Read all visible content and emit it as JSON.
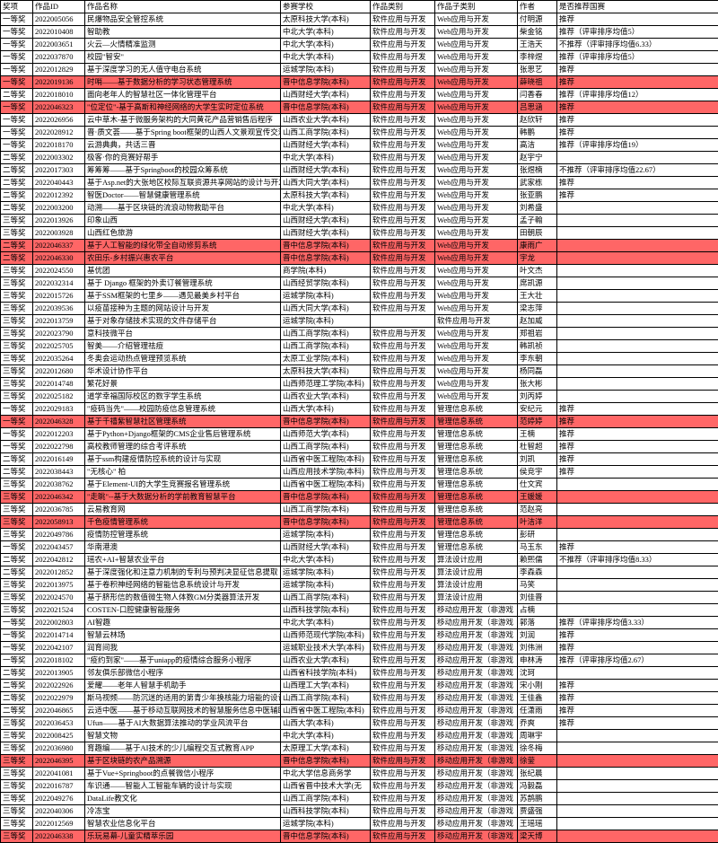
{
  "columns": [
    "奖项",
    "作品ID",
    "作品名称",
    "参赛学校",
    "作品类别",
    "作品子类别",
    "作者",
    "是否推荐国赛"
  ],
  "rows": [
    {
      "c": [
        "一等奖",
        "2022005056",
        "民爆物品安全管控系统",
        "太原科技大学(本科)",
        "软件应用与开发",
        "Web应用与开发",
        "付明源",
        "推荐"
      ],
      "hl": false
    },
    {
      "c": [
        "一等奖",
        "2022010408",
        "智助教",
        "中北大学(本科)",
        "软件应用与开发",
        "Web应用与开发",
        "柴金铭",
        "推荐（评审排序均值5）"
      ],
      "hl": false
    },
    {
      "c": [
        "一等奖",
        "2022003651",
        "火云—火情精准监测",
        "中北大学(本科)",
        "软件应用与开发",
        "Web应用与开发",
        "王浩天",
        "不推荐（评审排序均值6.33）"
      ],
      "hl": false
    },
    {
      "c": [
        "一等奖",
        "2022037870",
        "校园\"智安\"",
        "中北大学(本科)",
        "软件应用与开发",
        "Web应用与开发",
        "李梓煜",
        "推荐（评审排序均值5）"
      ],
      "hl": false
    },
    {
      "c": [
        "一等奖",
        "2022012829",
        "基于深度学习的无人值守电台系统",
        "运城学院(本科)",
        "软件应用与开发",
        "Web应用与开发",
        "张思艺",
        "推荐"
      ],
      "hl": false
    },
    {
      "c": [
        "一等奖",
        "2022019136",
        "时哨——基于数据分析的学习状态管理系统",
        "晋中信息学院(本科)",
        "软件应用与开发",
        "Web应用与开发",
        "薛晓祖",
        "推荐"
      ],
      "hl": true
    },
    {
      "c": [
        "二等奖",
        "2022018010",
        "面向老年人的智慧社区一体化管理平台",
        "山西财经大学(本科)",
        "软件应用与开发",
        "Web应用与开发",
        "闫香春",
        "推荐（评审排序均值12）"
      ],
      "hl": false
    },
    {
      "c": [
        "一等奖",
        "2022046323",
        "\"位定位\"-基于高斯和神经网络的大学生实时定位系统",
        "晋中信息学院(本科)",
        "软件应用与开发",
        "Web应用与开发",
        "吕思涵",
        "推荐"
      ],
      "hl": true
    },
    {
      "c": [
        "一等奖",
        "2022026956",
        "云中草木-基于微服务架构的大同黄花产品营销售后程序",
        "山西农业大学(本科)",
        "软件应用与开发",
        "Web应用与开发",
        "赵欣轩",
        "推荐"
      ],
      "hl": false
    },
    {
      "c": [
        "一等奖",
        "2022028912",
        "晋·质文荟——基于Spring boot框架的山西人文景观宣传交流系统",
        "山西工商学院(本科)",
        "软件应用与开发",
        "Web应用与开发",
        "韩鹏",
        "推荐"
      ],
      "hl": false
    },
    {
      "c": [
        "一等奖",
        "2022018170",
        "云游典典，共话三晋",
        "山西财经大学(本科)",
        "软件应用与开发",
        "Web应用与开发",
        "高洁",
        "推荐（评审排序均值19）"
      ],
      "hl": false
    },
    {
      "c": [
        "二等奖",
        "2022003302",
        "极客·你的竞赛好帮手",
        "中北大学(本科)",
        "软件应用与开发",
        "Web应用与开发",
        "赵宇宁",
        ""
      ],
      "hl": false
    },
    {
      "c": [
        "二等奖",
        "2022017303",
        "筹筹筹——基于Springboot的校园众筹系统",
        "山西财经大学(本科)",
        "软件应用与开发",
        "Web应用与开发",
        "张煜楠",
        "不推荐（评审排序均值22.67）"
      ],
      "hl": false
    },
    {
      "c": [
        "二等奖",
        "2022040443",
        "基于Asp.net的大张地区校际互联资源共享网站的设计与开发",
        "山西大同大学(本科)",
        "软件应用与开发",
        "Web应用与开发",
        "武家栋",
        "推荐"
      ],
      "hl": false
    },
    {
      "c": [
        "二等奖",
        "2022012392",
        "智医Doctor——智慧健康管理系统",
        "太原科技大学(本科)",
        "软件应用与开发",
        "Web应用与开发",
        "张亚鹏",
        "推荐"
      ],
      "hl": false
    },
    {
      "c": [
        "二等奖",
        "2022003200",
        "动溯——基于区块链的流浪动物救助平台",
        "中北大学(本科)",
        "软件应用与开发",
        "Web应用与开发",
        "刘希盛",
        ""
      ],
      "hl": false
    },
    {
      "c": [
        "三等奖",
        "2022013926",
        "印象山西",
        "山西财经大学(本科)",
        "软件应用与开发",
        "Web应用与开发",
        "孟子翰",
        ""
      ],
      "hl": false
    },
    {
      "c": [
        "三等奖",
        "2022003928",
        "山西红色旅游",
        "山西财经大学(本科)",
        "软件应用与开发",
        "Web应用与开发",
        "田朝辰",
        ""
      ],
      "hl": false
    },
    {
      "c": [
        "二等奖",
        "2022046337",
        "基于人工智能的绿化带全自动修剪系统",
        "晋中信息学院(本科)",
        "软件应用与开发",
        "Web应用与开发",
        "康雨广",
        ""
      ],
      "hl": true
    },
    {
      "c": [
        "二等奖",
        "2022046330",
        "农田乐-乡村振兴惠农平台",
        "晋中信息学院(本科)",
        "软件应用与开发",
        "Web应用与开发",
        "宇龙",
        ""
      ],
      "hl": true
    },
    {
      "c": [
        "三等奖",
        "2022024550",
        "基优团",
        "商学院(本科)",
        "软件应用与开发",
        "Web应用与开发",
        "叶文杰",
        ""
      ],
      "hl": false
    },
    {
      "c": [
        "三等奖",
        "2022032314",
        "基于 Django 框架的外卖订餐管理系统",
        "山西经贸学院(本科)",
        "软件应用与开发",
        "Web应用与开发",
        "席凯源",
        ""
      ],
      "hl": false
    },
    {
      "c": [
        "三等奖",
        "2022015726",
        "基于SSM框架的七里乡——遇见最美乡村平台",
        "运城学院(本科)",
        "软件应用与开发",
        "Web应用与开发",
        "王大壮",
        ""
      ],
      "hl": false
    },
    {
      "c": [
        "三等奖",
        "2022039536",
        "以疫苗接种为主题的网站设计与开发",
        "山西大同大学(本科)",
        "软件应用与开发",
        "Web应用与开发",
        "梁志萍",
        ""
      ],
      "hl": false
    },
    {
      "c": [
        "三等奖",
        "2022013759",
        "基于对象存储技术实现的文件存储平台",
        "运城学院(本科)",
        "",
        "软件应用与开发",
        "赵加威",
        ""
      ],
      "hl": false
    },
    {
      "c": [
        "三等奖",
        "2022023790",
        "意科技微平台",
        "山西工商学院(本科)",
        "软件应用与开发",
        "Web应用与开发",
        "郑祖岩",
        ""
      ],
      "hl": false
    },
    {
      "c": [
        "三等奖",
        "2022025705",
        "智美——介绍管理祛痘",
        "山西工商学院(本科)",
        "软件应用与开发",
        "Web应用与开发",
        "韩凯祯",
        ""
      ],
      "hl": false
    },
    {
      "c": [
        "三等奖",
        "2022035264",
        "冬奥会运动热点管理预览系统",
        "太原工业学院(本科)",
        "软件应用与开发",
        "Web应用与开发",
        "李东朝",
        ""
      ],
      "hl": false
    },
    {
      "c": [
        "三等奖",
        "2022012680",
        "华术设计协作平台",
        "太原科技大学(本科)",
        "软件应用与开发",
        "Web应用与开发",
        "杨同磊",
        ""
      ],
      "hl": false
    },
    {
      "c": [
        "三等奖",
        "2022014748",
        "繁花好景",
        "山西师范理工学院(本科)",
        "软件应用与开发",
        "Web应用与开发",
        "张大彬",
        ""
      ],
      "hl": false
    },
    {
      "c": [
        "三等奖",
        "2022025182",
        "道学幸福国际校区的数字学生系统",
        "山西农业大学(本科)",
        "软件应用与开发",
        "Web应用与开发",
        "刘丙婷",
        ""
      ],
      "hl": false
    },
    {
      "c": [
        "一等奖",
        "2022029183",
        "\"疫码当先\"——校园防疫信息管理系统",
        "山西大学(本科)",
        "软件应用与开发",
        "管理信息系统",
        "安纪元",
        "推荐"
      ],
      "hl": false
    },
    {
      "c": [
        "一等奖",
        "2022046328",
        "基于千禧紫智慧社区管理系统",
        "晋中信息学院(本科)",
        "软件应用与开发",
        "管理信息系统",
        "范婷婷",
        "推荐"
      ],
      "hl": true
    },
    {
      "c": [
        "一等奖",
        "2022012203",
        "基于Python+Django框架的CMS企业售后管理系统",
        "山西师范大学(本科)",
        "软件应用与开发",
        "管理信息系统",
        "王楠",
        "推荐"
      ],
      "hl": false
    },
    {
      "c": [
        "一等奖",
        "2022022798",
        "高校教师管理的综合考评系统",
        "山西工商学院(本科)",
        "软件应用与开发",
        "管理信息系统",
        "杜智超",
        "推荐"
      ],
      "hl": false
    },
    {
      "c": [
        "二等奖",
        "2022016149",
        "基于ssm构建疫情防控系统的设计与实现",
        "山西省中医工程院(本科)",
        "软件应用与开发",
        "管理信息系统",
        "刘凯",
        "推荐"
      ],
      "hl": false
    },
    {
      "c": [
        "二等奖",
        "2022038443",
        "\"无核心\" 柏",
        "山西应用技术学院(本科)",
        "软件应用与开发",
        "管理信息系统",
        "侯竞宇",
        "推荐"
      ],
      "hl": false
    },
    {
      "c": [
        "三等奖",
        "2022038762",
        "基于Element-UI的大学生竞赛报名管理系统",
        "山西省中医工程院(本科)",
        "软件应用与开发",
        "管理信息系统",
        "仕文宾",
        ""
      ],
      "hl": false
    },
    {
      "c": [
        "三等奖",
        "2022046342",
        "\"走眺\"--基于大数据分析的学前教育智慧平台",
        "晋中信息学院(本科)",
        "软件应用与开发",
        "管理信息系统",
        "王媛媛",
        ""
      ],
      "hl": true
    },
    {
      "c": [
        "三等奖",
        "2022036785",
        "云易教育网",
        "山西工商学院(本科)",
        "软件应用与开发",
        "管理信息系统",
        "范赵亮",
        ""
      ],
      "hl": false
    },
    {
      "c": [
        "三等奖",
        "2022058913",
        "千色疫情管理系统",
        "晋中信息学院(本科)",
        "软件应用与开发",
        "管理信息系统",
        "叶洁洋",
        ""
      ],
      "hl": true
    },
    {
      "c": [
        "三等奖",
        "2022049786",
        "疫情防控管理系统",
        "运城学院(本科)",
        "软件应用与开发",
        "管理信息系统",
        "彭研",
        ""
      ],
      "hl": false
    },
    {
      "c": [
        "一等奖",
        "2022043457",
        "华南港澳",
        "山西财经大学(本科)",
        "软件应用与开发",
        "管理信息系统",
        "马玉东",
        "推荐"
      ],
      "hl": false
    },
    {
      "c": [
        "二等奖",
        "2022042812",
        "瑶农+AI+智慧农业平台",
        "中北大学(本科)",
        "软件应用与开发",
        "算法设计应用",
        "赖熙儒",
        "不推荐（评审排序均值8.33）"
      ],
      "hl": false
    },
    {
      "c": [
        "二等奖",
        "2022012852",
        "基于深度强化和注意力机制的专利与预判决显征信息提取",
        "运城学院(本科)",
        "软件应用与开发",
        "算法设计应用",
        "李森森",
        ""
      ],
      "hl": false
    },
    {
      "c": [
        "三等奖",
        "2022013975",
        "基于卷积神经网络的智能信息系统设计与开发",
        "运城学院(本科)",
        "软件应用与开发",
        "算法设计应用",
        "马笑",
        ""
      ],
      "hl": false
    },
    {
      "c": [
        "三等奖",
        "2022024570",
        "基于脐形信的数值微生物人体数GM分类器算法开发",
        "山西工商学院(本科)",
        "软件应用与开发",
        "算法设计应用",
        "刘佳晋",
        ""
      ],
      "hl": false
    },
    {
      "c": [
        "三等奖",
        "2022021524",
        "COSTEN-口腔健康智能服务",
        "山西科技学院(本科)",
        "软件应用与开发",
        "移动应用开发（非游戏",
        "占楠",
        ""
      ],
      "hl": false
    },
    {
      "c": [
        "一等奖",
        "2022002803",
        "AI智趣",
        "中北大学(本科)",
        "软件应用与开发",
        "移动应用开发（非游戏",
        "郭落",
        "推荐（评审排序均值3.33）"
      ],
      "hl": false
    },
    {
      "c": [
        "一等奖",
        "2022014714",
        "智慧云林场",
        "山西师范现代学院(本科)",
        "软件应用与开发",
        "移动应用开发（非游戏",
        "刘润",
        "推荐"
      ],
      "hl": false
    },
    {
      "c": [
        "一等奖",
        "2022042107",
        "润育间我",
        "运城职业技术大学(本科)",
        "软件应用与开发",
        "移动应用开发（非游戏",
        "刘伟洲",
        "推荐"
      ],
      "hl": false
    },
    {
      "c": [
        "一等奖",
        "2022018102",
        "\"疫约到家\"——基于uniapp的疫情综合服务小程序",
        "山西农业大学(本科)",
        "软件应用与开发",
        "移动应用开发（非游戏",
        "申林涛",
        "推荐（评审排序均值2.67）"
      ],
      "hl": false
    },
    {
      "c": [
        "二等奖",
        "2022013905",
        "邻友俱乐部微信小程序",
        "山西省科技学院(本科)",
        "软件应用与开发",
        "移动应用开发（非游戏",
        "沈珂",
        ""
      ],
      "hl": false
    },
    {
      "c": [
        "二等奖",
        "2022022926",
        "爱耀——老年人智慧手机助手",
        "山西理工大学(本科)",
        "软件应用与开发",
        "移动应用开发（非游戏",
        "宋小刚",
        "推荐"
      ],
      "hl": false
    },
    {
      "c": [
        "二等奖",
        "2022022979",
        "斯马视频——防沉迷的适用的第青少年换核能力培能的设计分实现",
        "山西工商学院(本科)",
        "软件应用与开发",
        "移动应用开发（非游戏",
        "王佳鑫",
        "推荐"
      ],
      "hl": false
    },
    {
      "c": [
        "二等奖",
        "2022046865",
        "云适中医——基于移动互联网技术的智慧服务信息中医辅助App",
        "山西省中医工程院(本科)",
        "软件应用与开发",
        "移动应用开发（非游戏",
        "任潇雨",
        "推荐"
      ],
      "hl": false
    },
    {
      "c": [
        "三等奖",
        "2022036453",
        "Ufun——基于AI大数据算法推动的学业风流平台",
        "山西大学(本科)",
        "软件应用与开发",
        "移动应用开发（非游戏",
        "乔爽",
        "推荐"
      ],
      "hl": false
    },
    {
      "c": [
        "三等奖",
        "2022008425",
        "智慧文物",
        "中北大学(本科)",
        "软件应用与开发",
        "移动应用开发（非游戏",
        "周琳宇",
        ""
      ],
      "hl": false
    },
    {
      "c": [
        "三等奖",
        "2022036980",
        "育趣编——基于AI技术的少儿编程交互式教育APP",
        "太原理工大学(本科)",
        "软件应用与开发",
        "移动应用开发（非游戏",
        "徐冬梅",
        ""
      ],
      "hl": false
    },
    {
      "c": [
        "三等奖",
        "2022046395",
        "基于区块链的农产品溯源",
        "晋中信息学院(本科)",
        "软件应用与开发",
        "移动应用开发（非游戏",
        "徐蓥",
        ""
      ],
      "hl": true
    },
    {
      "c": [
        "三等奖",
        "2022041081",
        "基于Vue+Springboot的点餐微信小程序",
        "中北大学信息商务学",
        "软件应用与开发",
        "移动应用开发（非游戏",
        "张纪晨",
        ""
      ],
      "hl": false
    },
    {
      "c": [
        "三等奖",
        "2022016787",
        "车识通——智能人工智能车辆的设计与实现",
        "山西省晋中技术大学(无",
        "软件应用与开发",
        "移动应用开发（非游戏",
        "冯毅磊",
        ""
      ],
      "hl": false
    },
    {
      "c": [
        "三等奖",
        "2022049276",
        "DataLife教文化",
        "山西工商学院(本科)",
        "软件应用与开发",
        "移动应用开发（非游戏",
        "苏鹊鹏",
        ""
      ],
      "hl": false
    },
    {
      "c": [
        "三等奖",
        "2022040306",
        "冷冻宝",
        "山西科技学院(本科)",
        "软件应用与开发",
        "移动应用开发（非游戏",
        "贾盛强",
        ""
      ],
      "hl": false
    },
    {
      "c": [
        "三等奖",
        "2022012569",
        "智慧农业信息化平台",
        "运城学院(本科)",
        "软件应用与开发",
        "移动应用开发（非游戏",
        "王瑶瑶",
        ""
      ],
      "hl": false
    },
    {
      "c": [
        "三等奖",
        "2022046338",
        "乐玩易幕-儿童实精萃乐园",
        "晋中信息学院(本科)",
        "软件应用与开发",
        "移动应用开发（非游戏",
        "梁天博",
        ""
      ],
      "hl": true
    }
  ]
}
